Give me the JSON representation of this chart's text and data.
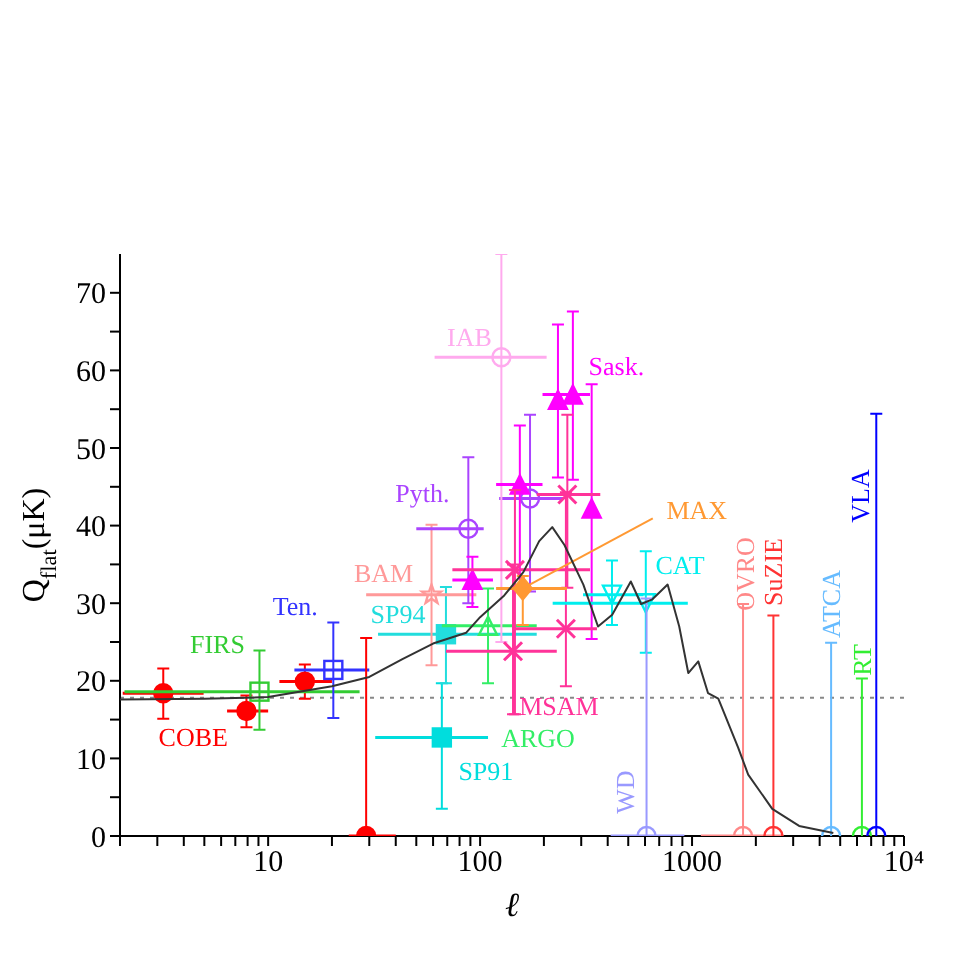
{
  "chart_data": {
    "type": "scatter",
    "xlabel": "ℓ",
    "ylabel": "Q$_{flat}$(μK)",
    "log": "x",
    "xlim": [
      2,
      10000
    ],
    "ylim": [
      0,
      75
    ],
    "xticks": [
      {
        "value": 2,
        "label": null
      },
      {
        "value": 3,
        "label": null
      },
      {
        "value": 4,
        "label": null
      },
      {
        "value": 5,
        "label": null
      },
      {
        "value": 6,
        "label": null
      },
      {
        "value": 7,
        "label": null
      },
      {
        "value": 8,
        "label": null
      },
      {
        "value": 9,
        "label": null
      },
      10,
      {
        "value": 20,
        "label": null
      },
      {
        "value": 30,
        "label": null
      },
      {
        "value": 40,
        "label": null
      },
      {
        "value": 50,
        "label": null
      },
      {
        "value": 60,
        "label": null
      },
      {
        "value": 70,
        "label": null
      },
      {
        "value": 80,
        "label": null
      },
      {
        "value": 90,
        "label": null
      },
      100,
      {
        "value": 200,
        "label": null
      },
      {
        "value": 300,
        "label": null
      },
      {
        "value": 400,
        "label": null
      },
      {
        "value": 500,
        "label": null
      },
      {
        "value": 600,
        "label": null
      },
      {
        "value": 700,
        "label": null
      },
      {
        "value": 800,
        "label": null
      },
      {
        "value": 900,
        "label": null
      },
      1000,
      {
        "value": 2000,
        "label": null
      },
      {
        "value": 3000,
        "label": null
      },
      {
        "value": 4000,
        "label": null
      },
      {
        "value": 5000,
        "label": null
      },
      {
        "value": 6000,
        "label": null
      },
      {
        "value": 7000,
        "label": null
      },
      {
        "value": 8000,
        "label": null
      },
      {
        "value": 9000,
        "label": null
      },
      {
        "value": 10000,
        "label": "10⁴"
      }
    ],
    "yticks": [
      0,
      {
        "value": 5,
        "label": null
      },
      10,
      {
        "value": 15,
        "label": null
      },
      20,
      {
        "value": 25,
        "label": null
      },
      30,
      {
        "value": 35,
        "label": null
      },
      40,
      {
        "value": 45,
        "label": null
      },
      50,
      {
        "value": 55,
        "label": null
      },
      60,
      {
        "value": 65,
        "label": null
      },
      70
    ],
    "ref_lines": [
      {
        "axis": "y",
        "value": 17.8,
        "color": "#888888",
        "line_style": "dotted"
      }
    ],
    "series": [
      {
        "name": "COBE",
        "color": "#ff0000",
        "marker": "circle",
        "x": [
          3.2,
          7.9,
          14.9
        ],
        "values": [
          18.4,
          16.1,
          19.9
        ],
        "errors": [
          [
            15.1,
            21.6
          ],
          [
            14.0,
            18.1
          ],
          [
            17.7,
            22.1
          ]
        ],
        "xerrors": [
          [
            2.06,
            4.96
          ],
          [
            6.4,
            10
          ],
          [
            11.3,
            20
          ]
        ]
      },
      {
        "name": "FIRS",
        "color": "#33cc33",
        "marker": "square",
        "x": [
          9.1
        ],
        "values": [
          18.6
        ],
        "errors": [
          [
            13.7,
            23.9
          ]
        ],
        "xerrors": [
          [
            2.1,
            27
          ]
        ]
      },
      {
        "name": "Ten.",
        "color": "#3333ff",
        "marker": "square",
        "x": [
          20.3
        ],
        "values": [
          21.4
        ],
        "errors": [
          [
            15.2,
            27.5
          ]
        ],
        "xerrors": [
          [
            13.3,
            30
          ]
        ]
      },
      {
        "color": "#ff0000",
        "marker": "circle",
        "x": [
          29
        ],
        "values": [
          0
        ],
        "errors": [
          [
            0,
            25.5
          ]
        ],
        "xerrors": [
          [
            24,
            40
          ]
        ]
      },
      {
        "name": "SP91",
        "color": "#00dddd",
        "marker": "square",
        "x": [
          66
        ],
        "values": [
          12.7
        ],
        "errors": [
          [
            3.5,
            19.7
          ]
        ],
        "xerrors": [
          [
            32,
            109
          ]
        ]
      },
      {
        "name": "SP94",
        "color": "#22dddd",
        "marker": "square",
        "x": [
          69
        ],
        "values": [
          26.0
        ],
        "errors": [
          [
            19.7,
            32.1
          ]
        ],
        "xerrors": [
          [
            33,
            185
          ]
        ]
      },
      {
        "name": "BAM",
        "color": "#ff9999",
        "marker": "star",
        "x": [
          59
        ],
        "values": [
          31.1
        ],
        "errors": [
          [
            22,
            40.1
          ]
        ],
        "xerrors": [
          [
            29,
            96
          ]
        ]
      },
      {
        "name": "ARGO",
        "color": "#33ee66",
        "marker": "triangle",
        "x": [
          109
        ],
        "values": [
          27.1
        ],
        "errors": [
          [
            19.7,
            31.9
          ]
        ],
        "xerrors": [
          [
            66,
            185
          ]
        ]
      },
      {
        "name": "Pyth.",
        "color": "#aa44ff",
        "marker": "circle",
        "x": [
          88,
          172
        ],
        "values": [
          39.6,
          43.5
        ],
        "errors": [
          [
            30,
            48.8
          ],
          [
            31.5,
            54.3
          ]
        ],
        "xerrors": [
          [
            50,
            104
          ],
          [
            123,
            247
          ]
        ]
      },
      {
        "name": "IAB",
        "color": "#ffaaee",
        "marker": "circle",
        "x": [
          126
        ],
        "values": [
          61.7
        ],
        "errors": [
          [
            25,
            75
          ]
        ],
        "xerrors": [
          [
            61,
            206
          ]
        ]
      },
      {
        "name": "Sask.",
        "color": "#ff00ff",
        "marker": "triangle",
        "x": [
          92,
          154,
          233,
          274,
          336
        ],
        "values": [
          33.0,
          45.3,
          56.2,
          56.9,
          42.2
        ],
        "errors": [
          [
            29.5,
            36
          ],
          [
            32,
            52.9
          ],
          [
            46.2,
            65.9
          ],
          [
            45.9,
            67.6
          ],
          [
            25.4,
            58.2
          ]
        ],
        "xerrors": [
          [
            74,
            115
          ],
          [
            119,
            197
          ],
          null,
          [
            197,
            330
          ],
          null
        ]
      },
      {
        "name": "MSAM",
        "color": "#ff3399",
        "marker": "cross",
        "x": [
          146,
          143,
          254,
          258
        ],
        "values": [
          34.3,
          23.8,
          26.7,
          44.0
        ],
        "errors": [
          [
            15.7,
            44.6
          ],
          [
            15.7,
            35
          ],
          [
            19.3,
            44.3
          ],
          [
            32,
            54.3
          ]
        ],
        "xerrors": [
          [
            74,
            330
          ],
          [
            69,
            230
          ],
          [
            142,
            356
          ],
          [
            185,
            369
          ]
        ]
      },
      {
        "name": "MAX",
        "color": "#ff9933",
        "marker": "diamond",
        "x": [
          159
        ],
        "values": [
          31.9
        ],
        "errors": [
          [
            27.2,
            33.5
          ]
        ],
        "xerrors": [
          [
            119,
            257
          ]
        ]
      },
      {
        "name": "CAT",
        "color": "#00eeee",
        "marker": "triangle",
        "x": [
          419,
          605
        ],
        "values": [
          31.1,
          30.0
        ],
        "errors": [
          [
            27.2,
            35.5
          ],
          [
            23.6,
            36.7
          ]
        ],
        "xerrors": [
          [
            306,
            590
          ],
          [
            220,
            955
          ]
        ]
      },
      {
        "name": "WD",
        "color": "#9999ff",
        "marker": "circle",
        "x": [
          610
        ],
        "values": [
          0
        ],
        "errors": [
          [
            0,
            30.6
          ]
        ],
        "xerrors": [
          [
            413,
            920
          ]
        ]
      },
      {
        "name": "OVRO",
        "color": "#ff8888",
        "marker": "circle",
        "x": [
          1740
        ],
        "values": [
          0
        ],
        "errors": [
          [
            0,
            29.9
          ]
        ],
        "xerrors": [
          [
            1100,
            2700
          ]
        ]
      },
      {
        "name": "SuZIE",
        "color": "#ff3333",
        "marker": "circle",
        "x": [
          2420
        ],
        "values": [
          0
        ],
        "errors": [
          [
            0,
            28.4
          ]
        ]
      },
      {
        "name": "ATCA",
        "color": "#66bbff",
        "marker": "circle",
        "x": [
          4530
        ],
        "values": [
          0
        ],
        "errors": [
          [
            0,
            24.9
          ]
        ]
      },
      {
        "name": "RT",
        "color": "#33ee33",
        "marker": "circle",
        "x": [
          6330
        ],
        "values": [
          0
        ],
        "errors": [
          [
            0,
            20.3
          ]
        ]
      },
      {
        "name": "VLA",
        "color": "#0000ff",
        "marker": "circle",
        "x": [
          7400
        ],
        "values": [
          0
        ],
        "errors": [
          [
            0,
            54.4
          ]
        ]
      },
      {
        "type": "line",
        "color": "#333333",
        "marker": "none",
        "x": [
          2,
          5,
          10,
          20,
          30,
          43,
          60,
          86,
          100,
          130,
          160,
          190,
          219,
          250,
          307,
          360,
          420,
          514,
          575,
          650,
          767,
          870,
          960,
          1070,
          1190,
          1330,
          1650,
          1840,
          2390,
          3200,
          4640
        ],
        "values": [
          17.6,
          17.7,
          17.9,
          19.3,
          20.5,
          22.8,
          24.8,
          26.2,
          28.2,
          31,
          34,
          38,
          39.8,
          37.5,
          32.4,
          27,
          28.5,
          32.8,
          29.9,
          30.5,
          32.4,
          27,
          21,
          22.5,
          18.4,
          17.7,
          11.4,
          7.9,
          3.5,
          1.3,
          0.4
        ]
      }
    ]
  }
}
